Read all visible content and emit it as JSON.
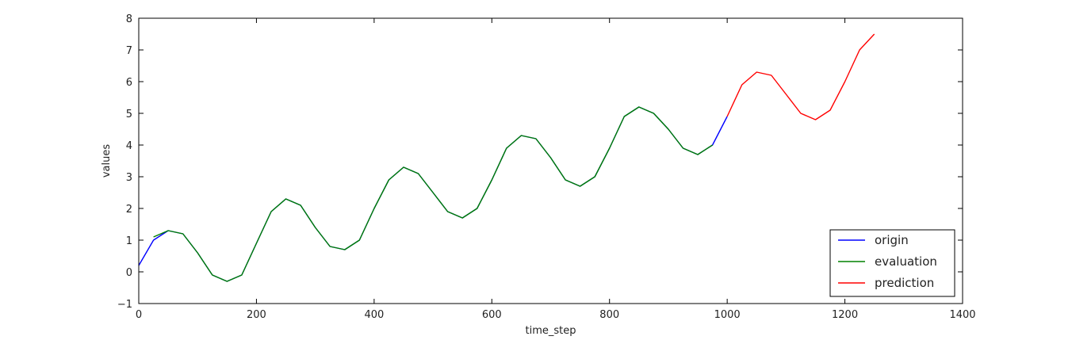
{
  "chart_data": {
    "type": "line",
    "xlabel": "time_step",
    "ylabel": "values",
    "xlim": [
      0,
      1400
    ],
    "ylim": [
      -1,
      8
    ],
    "xticks": [
      "0",
      "200",
      "400",
      "600",
      "800",
      "1000",
      "1200",
      "1400"
    ],
    "yticks": [
      "−1",
      "0",
      "1",
      "2",
      "3",
      "4",
      "5",
      "6",
      "7",
      "8"
    ],
    "grid": false,
    "legend_position": "lower-right",
    "series": [
      {
        "name": "origin",
        "color": "#0000ff",
        "x": [
          0,
          25,
          50,
          75,
          100,
          125,
          150,
          175,
          200,
          225,
          250,
          275,
          300,
          325,
          350,
          375,
          400,
          425,
          450,
          475,
          500,
          525,
          550,
          575,
          600,
          625,
          650,
          675,
          700,
          725,
          750,
          775,
          800,
          825,
          850,
          875,
          900,
          925,
          950,
          975,
          1000
        ],
        "values": [
          0.2,
          1.0,
          1.3,
          1.2,
          0.6,
          -0.1,
          -0.3,
          -0.1,
          0.9,
          1.9,
          2.3,
          2.1,
          1.4,
          0.8,
          0.7,
          1.0,
          2.0,
          2.9,
          3.3,
          3.1,
          2.5,
          1.9,
          1.7,
          2.0,
          2.9,
          3.9,
          4.3,
          4.2,
          3.6,
          2.9,
          2.7,
          3.0,
          3.9,
          4.9,
          5.2,
          5.0,
          4.5,
          3.9,
          3.7,
          4.0,
          4.9
        ]
      },
      {
        "name": "evaluation",
        "color": "#008000",
        "x": [
          25,
          50,
          75,
          100,
          125,
          150,
          175,
          200,
          225,
          250,
          275,
          300,
          325,
          350,
          375,
          400,
          425,
          450,
          475,
          500,
          525,
          550,
          575,
          600,
          625,
          650,
          675,
          700,
          725,
          750,
          775,
          800,
          825,
          850,
          875,
          900,
          925,
          950,
          975
        ],
        "values": [
          1.1,
          1.3,
          1.2,
          0.6,
          -0.1,
          -0.3,
          -0.1,
          0.9,
          1.9,
          2.3,
          2.1,
          1.4,
          0.8,
          0.7,
          1.0,
          2.0,
          2.9,
          3.3,
          3.1,
          2.5,
          1.9,
          1.7,
          2.0,
          2.9,
          3.9,
          4.3,
          4.2,
          3.6,
          2.9,
          2.7,
          3.0,
          3.9,
          4.9,
          5.2,
          5.0,
          4.5,
          3.9,
          3.7,
          4.0
        ]
      },
      {
        "name": "prediction",
        "color": "#ff0000",
        "x": [
          1000,
          1025,
          1050,
          1075,
          1100,
          1125,
          1150,
          1175,
          1200,
          1225,
          1250
        ],
        "values": [
          4.9,
          5.9,
          6.3,
          6.2,
          5.6,
          5.0,
          4.8,
          5.1,
          6.0,
          7.0,
          7.5
        ]
      }
    ]
  }
}
